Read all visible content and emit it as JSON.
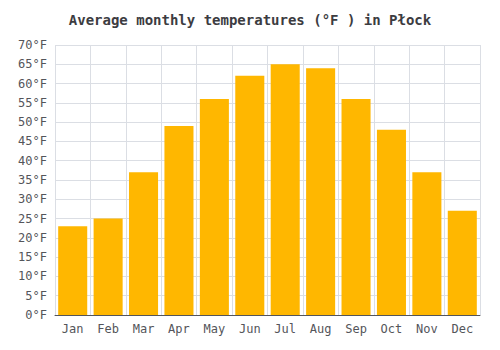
{
  "chart_data": {
    "type": "bar",
    "title": "Average monthly temperatures (°F ) in Płock",
    "categories": [
      "Jan",
      "Feb",
      "Mar",
      "Apr",
      "May",
      "Jun",
      "Jul",
      "Aug",
      "Sep",
      "Oct",
      "Nov",
      "Dec"
    ],
    "values": [
      23,
      25,
      37,
      49,
      56,
      62,
      65,
      64,
      56,
      48,
      37,
      27
    ],
    "color": "#FFB700",
    "ylim": [
      0,
      70
    ],
    "yticks": [
      {
        "value": 0,
        "label": "0°F"
      },
      {
        "value": 5,
        "label": "5°F"
      },
      {
        "value": 10,
        "label": "10°F"
      },
      {
        "value": 15,
        "label": "15°F"
      },
      {
        "value": 20,
        "label": "20°F"
      },
      {
        "value": 25,
        "label": "25°F"
      },
      {
        "value": 30,
        "label": "30°F"
      },
      {
        "value": 35,
        "label": "35°F"
      },
      {
        "value": 40,
        "label": "40°F"
      },
      {
        "value": 45,
        "label": "45°F"
      },
      {
        "value": 50,
        "label": "50°F"
      },
      {
        "value": 55,
        "label": "55°F"
      },
      {
        "value": 60,
        "label": "60°F"
      },
      {
        "value": 65,
        "label": "65°F"
      },
      {
        "value": 70,
        "label": "70°F"
      }
    ],
    "grid": true
  }
}
